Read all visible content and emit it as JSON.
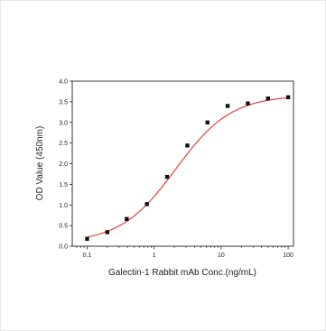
{
  "chart_data": {
    "type": "scatter",
    "xlabel": "Galectin-1 Rabbit mAb Conc.(ng/mL)",
    "ylabel": "OD Value (450nm)",
    "x_scale": "log",
    "xlim": [
      0.06,
      120
    ],
    "ylim": [
      0,
      4.0
    ],
    "x_ticks": [
      0.1,
      1,
      10,
      100
    ],
    "x_tick_labels": [
      "0.1",
      "1",
      "10",
      "100"
    ],
    "y_ticks": [
      0,
      0.5,
      1.0,
      1.5,
      2.0,
      2.5,
      3.0,
      3.5,
      4.0
    ],
    "y_tick_labels": [
      "0.0",
      "0.5",
      "1.0",
      "1.5",
      "2.0",
      "2.5",
      "3.0",
      "3.5",
      "4.0"
    ],
    "grid": false,
    "series": [
      {
        "points": [
          {
            "x": 0.1,
            "y": 0.18
          },
          {
            "x": 0.2,
            "y": 0.34
          },
          {
            "x": 0.39,
            "y": 0.66
          },
          {
            "x": 0.78,
            "y": 1.02
          },
          {
            "x": 1.56,
            "y": 1.68
          },
          {
            "x": 3.13,
            "y": 2.44
          },
          {
            "x": 6.25,
            "y": 3.0
          },
          {
            "x": 12.5,
            "y": 3.4
          },
          {
            "x": 25,
            "y": 3.46
          },
          {
            "x": 50,
            "y": 3.58
          },
          {
            "x": 100,
            "y": 3.61
          }
        ],
        "marker_color": "#111111"
      }
    ],
    "fit_curve": {
      "model": "4PL",
      "bottom": 0.08,
      "top": 3.66,
      "ec50": 2.1,
      "hill": 1.05,
      "color": "#e0332a"
    }
  }
}
